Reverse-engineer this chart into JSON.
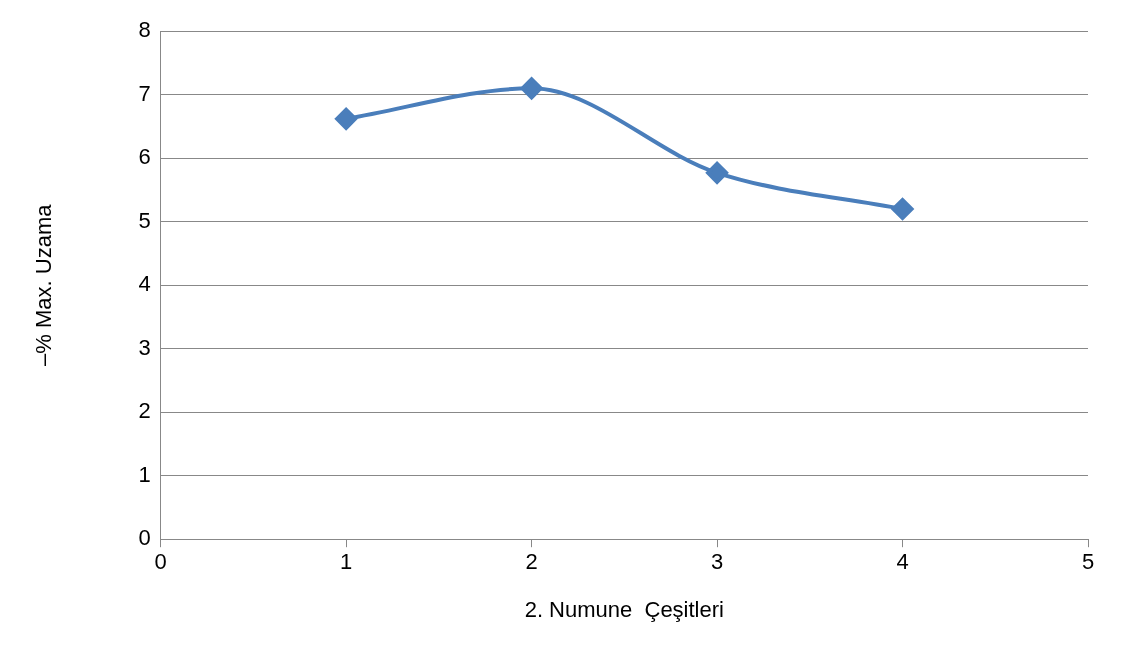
{
  "chart_data": {
    "type": "line",
    "xlabel": "2. Numune  Çeşitleri",
    "ylabel": "–% Max. Uzama",
    "x": [
      1,
      2,
      3,
      4
    ],
    "series": [
      {
        "color": "#4a7ebb",
        "values": [
          6.62,
          7.1,
          5.77,
          5.2
        ]
      }
    ],
    "xlim": [
      0,
      5
    ],
    "xticks": [
      0,
      1,
      2,
      3,
      4,
      5
    ],
    "ylim": [
      0,
      8
    ],
    "yticks": [
      0,
      1,
      2,
      3,
      4,
      5,
      6,
      7,
      8
    ],
    "grid": "y",
    "legend": false,
    "marker": "diamond",
    "line_style": "solid"
  }
}
